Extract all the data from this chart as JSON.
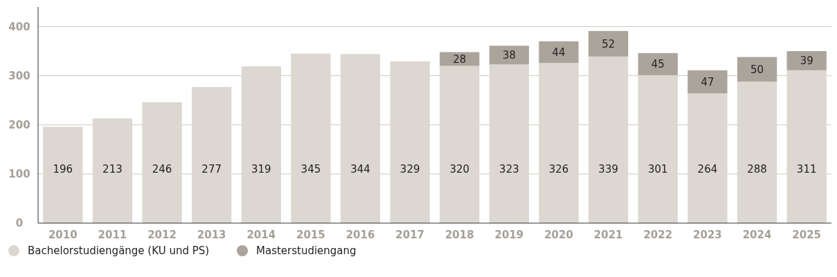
{
  "chart_data": {
    "type": "bar",
    "stacked": true,
    "data_labels": true,
    "grid": "y",
    "legend": "bottom left",
    "categories": [
      "2010",
      "2011",
      "2012",
      "2013",
      "2014",
      "2015",
      "2016",
      "2017",
      "2018",
      "2019",
      "2020",
      "2021",
      "2022",
      "2023",
      "2024",
      "2025"
    ],
    "series": [
      {
        "name": "Bachelorstudiengänge (KU und PS)",
        "color": "#dcd7d0",
        "values": [
          196,
          213,
          246,
          277,
          319,
          345,
          344,
          329,
          320,
          323,
          326,
          339,
          301,
          264,
          288,
          311
        ]
      },
      {
        "name": "Masterstudiengang",
        "color": "#aba49b",
        "values": [
          null,
          null,
          null,
          null,
          null,
          null,
          null,
          null,
          28,
          38,
          44,
          52,
          45,
          47,
          50,
          39
        ]
      }
    ],
    "ylim": [
      0,
      440
    ],
    "yticks": [
      0,
      100,
      200,
      300,
      400
    ]
  }
}
